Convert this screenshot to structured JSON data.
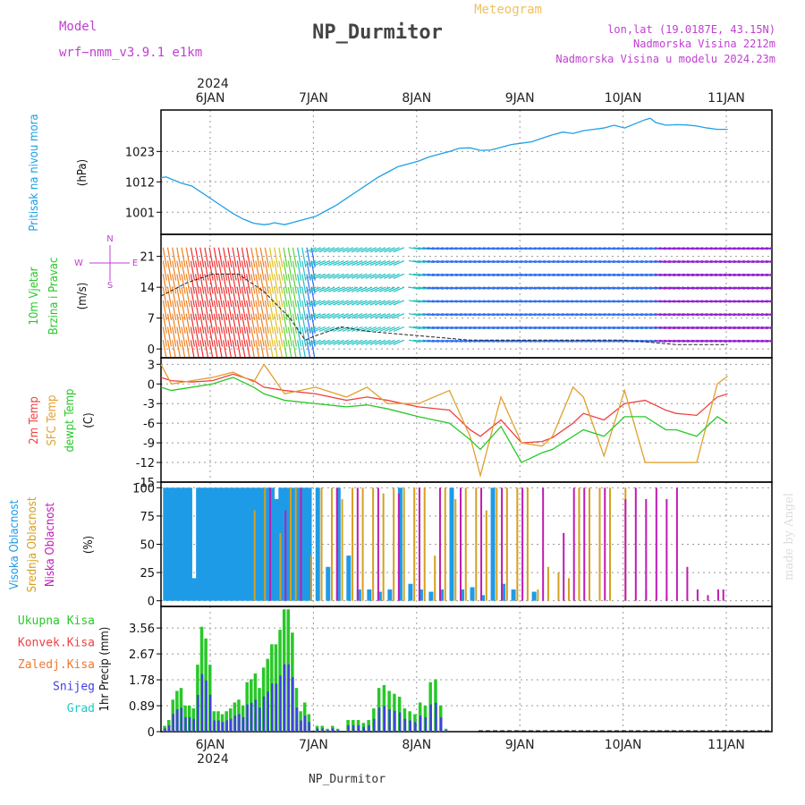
{
  "header": {
    "model_label": "Model",
    "model_name": "wrf−nmm_v3.9.1  e1km",
    "title": "NP_Durmitor",
    "meteogram_label": "Meteogram",
    "lonlat": "lon,lat (19.0187E, 43.15N)",
    "elevation": "Nadmorska Visina 2212m",
    "model_elevation": "Nadmorska Visina u modelu 2024.23m",
    "year": "2024",
    "watermark": "made by Angel"
  },
  "footer": {
    "station": "NP_Durmitor"
  },
  "time_axis": {
    "labels": [
      "6JAN",
      "7JAN",
      "8JAN",
      "9JAN",
      "10JAN",
      "11JAN"
    ]
  },
  "colors": {
    "pressure": "#1ea0e6",
    "t2m": "#f04040",
    "tsfc": "#e0a030",
    "dewpoint": "#28c828",
    "high_cloud": "#1e9be6",
    "mid_cloud": "#d4a020",
    "low_cloud": "#c01cb4",
    "total_precip": "#28c828",
    "conv_precip": "#f04040",
    "freezing_precip": "#f07830",
    "snow": "#4040e0",
    "graupel": "#20c8c8",
    "model_label": "#c040d0"
  },
  "chart_data": [
    {
      "type": "line",
      "name": "pressure",
      "ylabel": [
        "Pritisak na nivou mora",
        "(hPa)"
      ],
      "yticks": [
        1001,
        1012,
        1023
      ],
      "ylim": [
        993,
        1038
      ],
      "x": [
        0,
        0.05,
        0.1,
        0.2,
        0.3,
        0.4,
        0.5,
        0.6,
        0.7,
        0.8,
        0.9,
        1.0,
        1.05,
        1.1,
        1.2,
        1.3,
        1.4,
        1.5,
        1.6,
        1.7,
        1.8,
        1.9,
        2.0,
        2.1,
        2.2,
        2.3,
        2.4,
        2.5,
        2.6,
        2.7,
        2.8,
        2.9,
        3.0,
        3.1,
        3.2,
        3.3,
        3.4,
        3.5,
        3.6,
        3.7,
        3.8,
        3.9,
        4.0,
        4.1,
        4.2,
        4.3,
        4.4,
        4.5,
        4.6,
        4.7,
        4.75,
        4.8,
        4.9,
        5.0,
        5.1,
        5.2,
        5.3,
        5.4,
        5.5
      ],
      "values": [
        1013.5,
        1013.8,
        1013,
        1011.5,
        1010.5,
        1008,
        1005.5,
        1003,
        1000.5,
        998.5,
        997,
        996.5,
        996.7,
        997.2,
        996.5,
        997.5,
        998.5,
        999.5,
        1001.5,
        1003.5,
        1006,
        1008.5,
        1011,
        1013.5,
        1015.5,
        1017.5,
        1018.5,
        1019.5,
        1021,
        1022,
        1023,
        1024.2,
        1024.3,
        1023.4,
        1023.5,
        1024.5,
        1025.5,
        1026,
        1026.5,
        1027.8,
        1029,
        1030,
        1029.5,
        1030.5,
        1031,
        1031.5,
        1032.5,
        1031.5,
        1033,
        1034.5,
        1035,
        1033.5,
        1032.5,
        1032.7,
        1032.6,
        1032.2,
        1031.5,
        1031,
        1031
      ],
      "grid": true
    },
    {
      "type": "wind",
      "name": "wind",
      "ylabel": [
        "10m Vjetar",
        "Brzina i Pravac",
        "(m/s)"
      ],
      "yticks": [
        0,
        7,
        14,
        21
      ],
      "ylim": [
        -2,
        26
      ],
      "compass": {
        "n": "N",
        "s": "S",
        "e": "E",
        "w": "W"
      },
      "x": [
        0,
        0.25,
        0.5,
        0.75,
        1.0,
        1.25,
        1.4,
        1.5,
        1.75,
        2.0,
        2.5,
        3.0,
        3.5,
        4.0,
        4.5,
        5.0,
        5.5
      ],
      "speed": [
        12,
        15,
        17,
        17,
        13,
        7,
        2,
        3,
        5,
        4,
        3,
        2,
        2,
        2,
        2,
        1,
        1
      ],
      "grid": true
    },
    {
      "type": "line",
      "name": "temperature",
      "ylabel": [
        "2m Temp",
        "SFC Temp",
        "dewpt Temp",
        "(C)"
      ],
      "yticks": [
        3,
        0,
        -3,
        -6,
        -9,
        -12,
        -15
      ],
      "ylim": [
        -15,
        4
      ],
      "x": [
        0,
        0.1,
        0.3,
        0.5,
        0.7,
        0.9,
        1.0,
        1.2,
        1.5,
        1.8,
        2.0,
        2.2,
        2.5,
        2.8,
        3.0,
        3.1,
        3.3,
        3.5,
        3.7,
        3.8,
        4.0,
        4.1,
        4.3,
        4.5,
        4.7,
        4.9,
        5.0,
        5.2,
        5.4,
        5.5
      ],
      "series": [
        {
          "name": "2m Temp",
          "color_key": "t2m",
          "values": [
            1,
            0.5,
            0.3,
            0.5,
            1.5,
            0.5,
            -0.5,
            -1,
            -1.5,
            -2.5,
            -2,
            -2.5,
            -3.5,
            -4,
            -7,
            -8,
            -5.5,
            -9,
            -8.8,
            -8.2,
            -6,
            -4.5,
            -5.5,
            -3,
            -2.5,
            -4,
            -4.5,
            -4.8,
            -2,
            -1.5
          ]
        },
        {
          "name": "SFC Temp",
          "color_key": "tsfc",
          "values": [
            3,
            0,
            0.5,
            1,
            1.8,
            0.3,
            3,
            -1.5,
            -0.5,
            -2,
            -0.5,
            -3,
            -3,
            -1,
            -8,
            -14,
            -2,
            -9,
            -9.5,
            -8,
            -0.5,
            -2,
            -11,
            -1,
            -12,
            -12,
            -12,
            -12,
            0,
            1.2
          ]
        },
        {
          "name": "dewpt Temp",
          "color_key": "dewpoint",
          "values": [
            -0.5,
            -1,
            -0.5,
            0,
            1,
            -0.5,
            -1.5,
            -2.5,
            -3,
            -3.5,
            -3.2,
            -3.8,
            -5,
            -6,
            -8.5,
            -10,
            -6.5,
            -12,
            -10.5,
            -10,
            -8,
            -7,
            -8,
            -5,
            -5,
            -7,
            -7,
            -8,
            -5,
            -6
          ]
        }
      ],
      "grid": true
    },
    {
      "type": "bar",
      "name": "clouds",
      "ylabel": [
        "Visoka Oblacnost",
        "Srednja Oblacnost",
        "Niska Oblacnost",
        "(%)"
      ],
      "yticks": [
        0,
        25,
        50,
        75,
        100
      ],
      "ylim": [
        -5,
        105
      ],
      "series": [
        {
          "name": "Visoka Oblacnost",
          "color_key": "high_cloud",
          "x": [
            0.02,
            0.06,
            0.1,
            0.14,
            0.18,
            0.22,
            0.26,
            0.3,
            0.34,
            0.38,
            0.42,
            0.46,
            0.5,
            0.54,
            0.58,
            0.62,
            0.66,
            0.7,
            0.74,
            0.78,
            0.82,
            0.86,
            0.9,
            0.94,
            0.98,
            1.02,
            1.06,
            1.1,
            1.14,
            1.18,
            1.22,
            1.26,
            1.3,
            1.34,
            1.38,
            1.42,
            1.5,
            1.6,
            1.7,
            1.8,
            1.9,
            2.0,
            2.1,
            2.2,
            2.3,
            2.4,
            2.5,
            2.6,
            2.7,
            2.8,
            2.9,
            3.0,
            3.1,
            3.2,
            3.3,
            3.4,
            3.6
          ],
          "values": [
            100,
            100,
            100,
            100,
            100,
            100,
            100,
            20,
            100,
            100,
            100,
            100,
            100,
            100,
            100,
            100,
            100,
            100,
            100,
            100,
            100,
            100,
            100,
            100,
            100,
            100,
            100,
            90,
            100,
            100,
            100,
            100,
            100,
            100,
            100,
            100,
            100,
            30,
            100,
            40,
            10,
            10,
            8,
            10,
            100,
            15,
            10,
            8,
            10,
            100,
            10,
            12,
            5,
            100,
            15,
            10,
            8
          ]
        },
        {
          "name": "Srednja Oblacnost",
          "color_key": "mid_cloud",
          "x": [
            0.9,
            1.0,
            1.15,
            1.25,
            1.3,
            1.45,
            1.55,
            1.65,
            1.75,
            1.85,
            1.95,
            2.05,
            2.15,
            2.25,
            2.35,
            2.45,
            2.55,
            2.65,
            2.75,
            2.85,
            2.95,
            3.05,
            3.15,
            3.25,
            3.35,
            3.45,
            3.55,
            3.65,
            3.75,
            3.85,
            3.95,
            4.05,
            4.15,
            4.25,
            4.35,
            4.5,
            4.7,
            4.9,
            5.1
          ],
          "values": [
            80,
            100,
            60,
            100,
            100,
            40,
            100,
            100,
            90,
            100,
            100,
            100,
            95,
            100,
            100,
            100,
            100,
            40,
            100,
            90,
            100,
            100,
            80,
            100,
            100,
            100,
            100,
            10,
            30,
            25,
            20,
            100,
            100,
            100,
            100,
            100,
            10,
            5,
            2
          ]
        },
        {
          "name": "Niska Oblacnost",
          "color_key": "low_cloud",
          "x": [
            1.05,
            1.2,
            1.35,
            1.7,
            1.9,
            2.1,
            2.3,
            2.5,
            2.7,
            2.9,
            3.1,
            3.3,
            3.5,
            3.7,
            3.9,
            4.0,
            4.1,
            4.3,
            4.5,
            4.6,
            4.7,
            4.8,
            4.9,
            5.0,
            5.1,
            5.2,
            5.3,
            5.4,
            5.45
          ],
          "values": [
            100,
            80,
            100,
            100,
            100,
            100,
            95,
            100,
            100,
            100,
            100,
            100,
            100,
            100,
            60,
            100,
            100,
            100,
            90,
            100,
            90,
            100,
            90,
            100,
            30,
            10,
            5,
            10,
            10
          ]
        }
      ],
      "grid": true
    },
    {
      "type": "bar",
      "name": "precipitation",
      "ylabel": [
        "1hr Precip (mm)"
      ],
      "yticks": [
        0,
        0.89,
        1.78,
        2.67,
        3.56
      ],
      "ylim": [
        0,
        4.3
      ],
      "legend": [
        "Ukupna Kisa",
        "Konvek.Kisa",
        "Zaledj.Kisa",
        "Snijeg",
        "Grad"
      ],
      "x": [
        0.02,
        0.06,
        0.1,
        0.14,
        0.18,
        0.22,
        0.26,
        0.3,
        0.34,
        0.38,
        0.42,
        0.46,
        0.5,
        0.54,
        0.58,
        0.62,
        0.66,
        0.7,
        0.74,
        0.78,
        0.82,
        0.86,
        0.9,
        0.94,
        0.98,
        1.02,
        1.06,
        1.1,
        1.14,
        1.18,
        1.22,
        1.26,
        1.3,
        1.34,
        1.38,
        1.42,
        1.5,
        1.55,
        1.6,
        1.65,
        1.7,
        1.8,
        1.85,
        1.9,
        1.95,
        2.0,
        2.05,
        2.1,
        2.15,
        2.2,
        2.25,
        2.3,
        2.35,
        2.4,
        2.45,
        2.5,
        2.55,
        2.6,
        2.65,
        2.7,
        2.75
      ],
      "values": [
        0.2,
        0.4,
        1.1,
        1.4,
        1.5,
        0.9,
        0.9,
        0.8,
        2.3,
        3.6,
        3.2,
        2.3,
        0.7,
        0.7,
        0.6,
        0.7,
        0.8,
        1.0,
        1.1,
        0.9,
        1.7,
        1.8,
        2.0,
        1.5,
        2.2,
        2.5,
        3.0,
        3.0,
        3.5,
        4.2,
        4.2,
        3.4,
        1.5,
        0.7,
        1.0,
        0.6,
        0.2,
        0.2,
        0.1,
        0.2,
        0.1,
        0.4,
        0.4,
        0.4,
        0.3,
        0.4,
        0.8,
        1.5,
        1.6,
        1.4,
        1.3,
        1.2,
        0.8,
        0.7,
        0.6,
        1.0,
        0.9,
        1.7,
        1.8,
        0.9,
        0.1
      ],
      "snow_fraction": 0.55,
      "grid": true
    }
  ]
}
